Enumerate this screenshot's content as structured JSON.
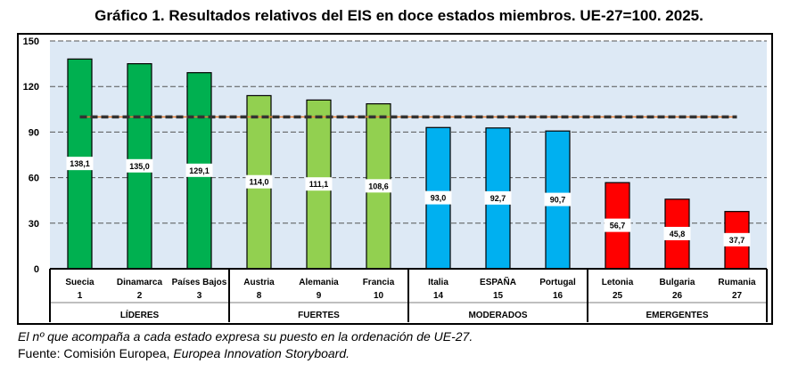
{
  "chart_data": {
    "type": "bar",
    "title": "Gráfico 1. Resultados relativos del EIS en doce estados miembros. UE-27=100. 2025.",
    "categories": [
      "Suecia",
      "Dinamarca",
      "Países Bajos",
      "Austria",
      "Alemania",
      "Francia",
      "Italia",
      "ESPAÑA",
      "Portugal",
      "Letonia",
      "Bulgaria",
      "Rumania"
    ],
    "ranks": [
      "1",
      "2",
      "3",
      "8",
      "9",
      "10",
      "14",
      "15",
      "16",
      "25",
      "26",
      "27"
    ],
    "values": [
      138.1,
      135.0,
      129.1,
      114.0,
      111.1,
      108.6,
      93.0,
      92.7,
      90.7,
      56.7,
      45.8,
      37.7
    ],
    "value_labels": [
      "138,1",
      "135,0",
      "129,1",
      "114,0",
      "111,1",
      "108,6",
      "93,0",
      "92,7",
      "90,7",
      "56,7",
      "45,8",
      "37,7"
    ],
    "groups": [
      {
        "name": "LÍDERES",
        "color": "#00B050",
        "count": 3
      },
      {
        "name": "FUERTES",
        "color": "#92D050",
        "count": 3
      },
      {
        "name": "MODERADOS",
        "color": "#00B0F0",
        "count": 3
      },
      {
        "name": "EMERGENTES",
        "color": "#FF0000",
        "count": 3
      }
    ],
    "reference_line": {
      "value": 100,
      "label": "UE-27=100"
    },
    "ylim": [
      0,
      150
    ],
    "yticks": [
      0,
      30,
      60,
      90,
      120,
      150
    ],
    "grid": true,
    "plot_background": "#DDE9F5"
  },
  "notes": {
    "note1": "El nº que acompaña a cada estado expresa su puesto en la ordenación de UE-27.",
    "source_prefix": "Fuente: Comisión Europea, ",
    "source_italic": "Europea Innovation Storyboard."
  }
}
